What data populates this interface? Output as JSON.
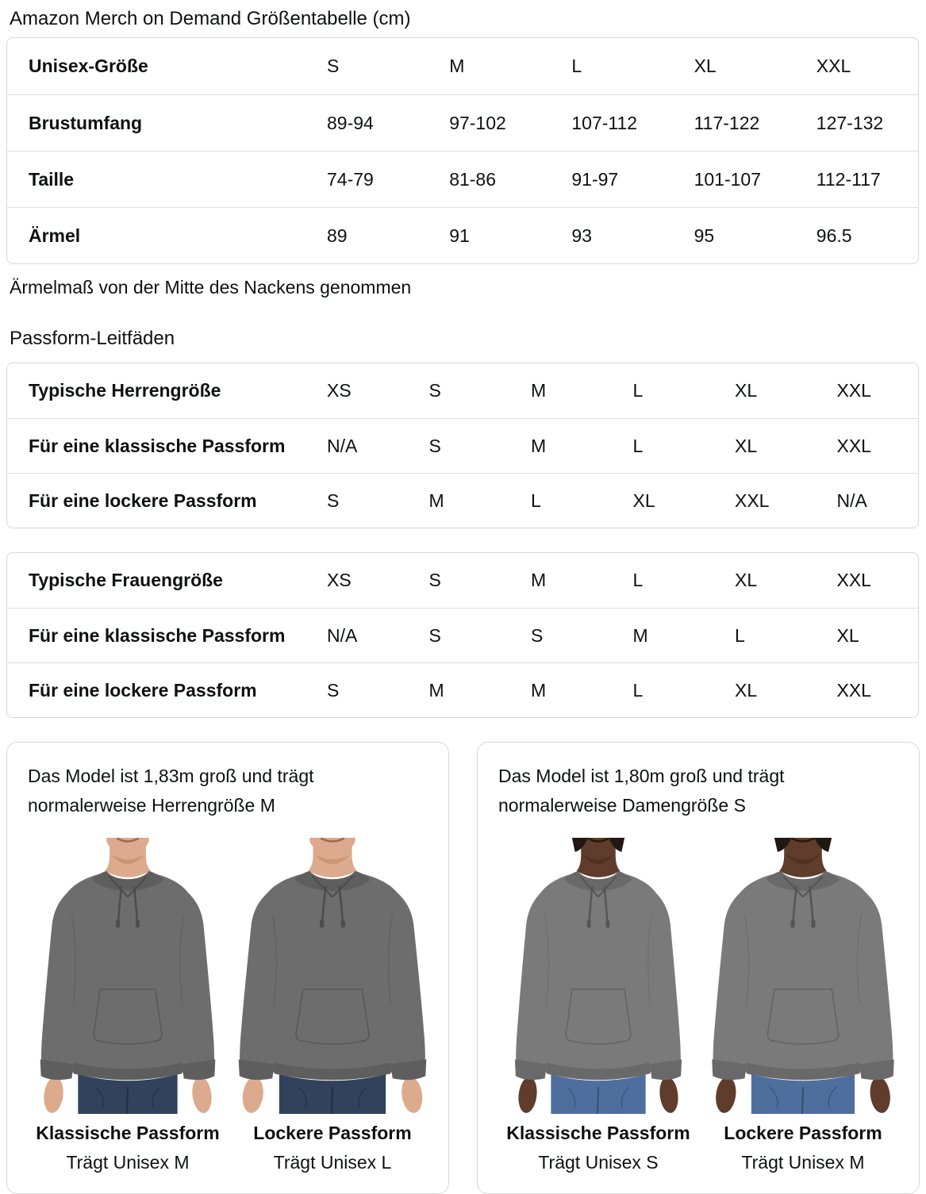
{
  "page": {
    "title": "Amazon Merch on Demand Größentabelle (cm)",
    "footnote": "Ärmelmaß von der Mitte des Nackens genommen",
    "fit_section_title": "Passform-Leitfäden"
  },
  "tables": {
    "unisex": {
      "rows": [
        {
          "label": "Unisex-Größe",
          "values": [
            "S",
            "M",
            "L",
            "XL",
            "XXL"
          ]
        },
        {
          "label": "Brustumfang",
          "values": [
            "89-94",
            "97-102",
            "107-112",
            "117-122",
            "127-132"
          ]
        },
        {
          "label": "Taille",
          "values": [
            "74-79",
            "81-86",
            "91-97",
            "101-107",
            "112-117"
          ]
        },
        {
          "label": "Ärmel",
          "values": [
            "89",
            "91",
            "93",
            "95",
            "96.5"
          ]
        }
      ]
    },
    "men_fit": {
      "rows": [
        {
          "label": "Typische Herrengröße",
          "values": [
            "XS",
            "S",
            "M",
            "L",
            "XL",
            "XXL"
          ]
        },
        {
          "label": "Für eine klassische Passform",
          "values": [
            "N/A",
            "S",
            "M",
            "L",
            "XL",
            "XXL"
          ]
        },
        {
          "label": "Für eine lockere Passform",
          "values": [
            "S",
            "M",
            "L",
            "XL",
            "XXL",
            "N/A"
          ]
        }
      ]
    },
    "women_fit": {
      "rows": [
        {
          "label": "Typische Frauengröße",
          "values": [
            "XS",
            "S",
            "M",
            "L",
            "XL",
            "XXL"
          ]
        },
        {
          "label": "Für eine klassische Passform",
          "values": [
            "N/A",
            "S",
            "S",
            "M",
            "L",
            "XL"
          ]
        },
        {
          "label": "Für eine lockere Passform",
          "values": [
            "S",
            "M",
            "M",
            "L",
            "XL",
            "XXL"
          ]
        }
      ]
    }
  },
  "cards": [
    {
      "heading": "Das Model ist 1,83m groß und trägt normalerweise Herrengröße M",
      "figures": [
        {
          "fit_label": "Klassische Passform",
          "size_label": "Trägt Unisex M"
        },
        {
          "fit_label": "Lockere Passform",
          "size_label": "Trägt Unisex L"
        }
      ]
    },
    {
      "heading": "Das Model ist 1,80m groß und trägt normalerweise Damengröße S",
      "figures": [
        {
          "fit_label": "Klassische Passform",
          "size_label": "Trägt Unisex S"
        },
        {
          "fit_label": "Lockere Passform",
          "size_label": "Trägt Unisex M"
        }
      ]
    }
  ],
  "colors": {
    "text": "#0f1111",
    "table_border": "#d5d9d9",
    "row_divider": "#dcdfdf",
    "hoodie_gray_men": "#6d6d6d",
    "hoodie_gray_women": "#7a7a7a",
    "jeans_men": "#32425d",
    "jeans_women": "#4e6f9e",
    "skin_men": "#dcaa8d",
    "skin_women": "#5f3c2b"
  }
}
